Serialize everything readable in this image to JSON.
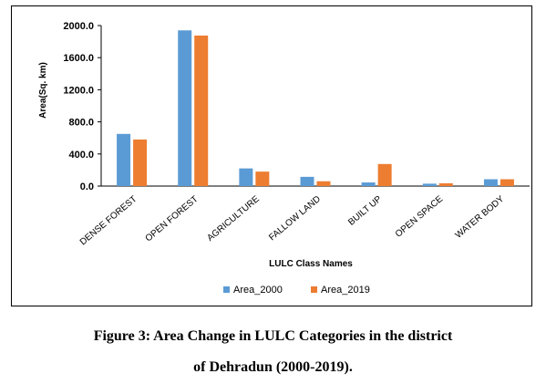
{
  "chart_data": {
    "type": "bar",
    "categories": [
      "DENSE FOREST",
      "OPEN FOREST",
      "AGRICULTURE",
      "FALLOW LAND",
      "BUILT UP",
      "OPEN SPACE",
      "WATER BODY"
    ],
    "series": [
      {
        "name": "Area_2000",
        "color": "#5B9BD5",
        "values": [
          650,
          1940,
          220,
          115,
          45,
          30,
          85
        ]
      },
      {
        "name": "Area_2019",
        "color": "#ED7D31",
        "values": [
          580,
          1875,
          180,
          60,
          275,
          35,
          85
        ]
      }
    ],
    "xlabel": "LULC Class Names",
    "ylabel": "Area(Sq. km)",
    "ylim": [
      0,
      2000
    ],
    "yticks": [
      "2000.0",
      "1600.0",
      "1200.0",
      "800.0",
      "400.0",
      "0.0"
    ],
    "ytick_values": [
      2000,
      1600,
      1200,
      800,
      400,
      0
    ],
    "grid": false,
    "legend_position": "bottom"
  },
  "caption": {
    "line1": "Figure 3: Area Change in LULC Categories in the district",
    "line2": "of Dehradun (2000-2019)."
  }
}
